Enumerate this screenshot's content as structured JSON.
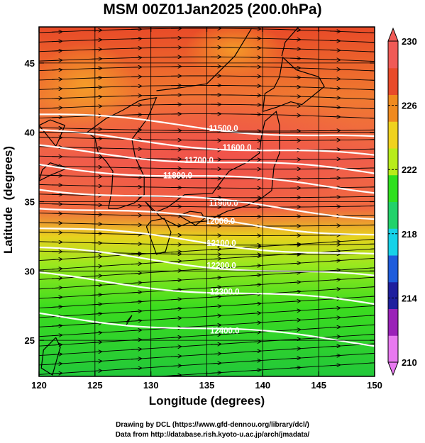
{
  "title": "MSM 00Z01Jan2025 (200.0hPa)",
  "xlabel": "Longitude (degrees)",
  "ylabel": "Latitude  (degrees)",
  "credits": [
    "Drawing by DCL (https://www.gfd-dennou.org/library/dcl/)",
    "Data from http://database.rish.kyoto-u.ac.jp/arch/jmadata/"
  ],
  "map": {
    "lon_range": [
      120,
      150
    ],
    "lat_range": [
      22.4,
      47.6
    ],
    "lon_ticks": [
      "120",
      "125",
      "130",
      "135",
      "140",
      "145",
      "150"
    ],
    "lat_ticks": [
      "25",
      "30",
      "35",
      "40",
      "45"
    ]
  },
  "colorbar": {
    "range": [
      210,
      230
    ],
    "tick_labels": [
      "230",
      "226",
      "222",
      "218",
      "214",
      "210"
    ],
    "colors": [
      "#e879f0",
      "#9a21b8",
      "#1f1f9e",
      "#1e5cdc",
      "#16d2e8",
      "#22d26a",
      "#2fe01e",
      "#b8ec1a",
      "#f0d21e",
      "#f08a1e",
      "#e84a2a",
      "#f05a56"
    ]
  },
  "contours": [
    {
      "value": "11500.0",
      "label_lon": 136.5,
      "label_lat": 40.3
    },
    {
      "value": "11600.0",
      "label_lon": 137.7,
      "label_lat": 38.9
    },
    {
      "value": "11700.0",
      "label_lon": 134.3,
      "label_lat": 38.0
    },
    {
      "value": "11800.0",
      "label_lon": 132.4,
      "label_lat": 36.9
    },
    {
      "value": "11900.0",
      "label_lon": 136.5,
      "label_lat": 34.9
    },
    {
      "value": "12000.0",
      "label_lon": 136.2,
      "label_lat": 33.6
    },
    {
      "value": "12100.0",
      "label_lon": 136.3,
      "label_lat": 32.0
    },
    {
      "value": "12200.0",
      "label_lon": 136.3,
      "label_lat": 30.4
    },
    {
      "value": "12300.0",
      "label_lon": 136.6,
      "label_lat": 28.5
    },
    {
      "value": "12400.0",
      "label_lon": 136.6,
      "label_lat": 25.7
    }
  ]
}
